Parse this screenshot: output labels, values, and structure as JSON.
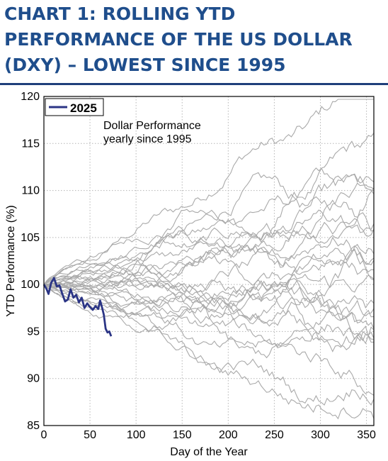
{
  "title": "CHART 1: ROLLING YTD PERFORMANCE OF THE US DOLLAR (DXY) – LOWEST SINCE 1995",
  "colors": {
    "title": "#1f4e8c",
    "current": "#2b3585",
    "history": "#a9a9a9",
    "grid": "#b5b5b5"
  },
  "chart_data": {
    "type": "line",
    "xlabel": "Day of the Year",
    "ylabel": "YTD Performance (%)",
    "xlim": [
      0,
      358
    ],
    "ylim": [
      85,
      120
    ],
    "xticks": [
      0,
      50,
      100,
      150,
      200,
      250,
      300,
      350
    ],
    "yticks": [
      85,
      90,
      95,
      100,
      105,
      110,
      115,
      120
    ],
    "grid": true,
    "legend": {
      "position": "top-left",
      "entries": [
        "2025"
      ]
    },
    "annotation": [
      "Dollar Performance",
      "yearly since 1995"
    ],
    "series": [
      {
        "name": "2025",
        "x": [
          0,
          3,
          5,
          8,
          11,
          14,
          17,
          20,
          23,
          26,
          29,
          32,
          35,
          38,
          41,
          44,
          47,
          50,
          53,
          56,
          59,
          61,
          63,
          65,
          67,
          69,
          71,
          73
        ],
        "values": [
          100.0,
          99.5,
          99.0,
          100.2,
          100.7,
          99.8,
          99.9,
          99.0,
          98.2,
          98.4,
          99.5,
          98.6,
          98.9,
          98.1,
          98.6,
          97.5,
          98.0,
          97.6,
          97.3,
          97.7,
          97.4,
          98.3,
          97.6,
          96.8,
          95.3,
          94.9,
          95.0,
          94.5
        ]
      }
    ],
    "history_note": "Dollar Performance yearly since 1995",
    "history_end_values": [
      118.5,
      112.5,
      112.0,
      111.0,
      109.5,
      108.0,
      107.0,
      106.0,
      105.5,
      104.0,
      103.0,
      102.0,
      101.5,
      100.0,
      99.0,
      98.0,
      97.5,
      96.5,
      95.5,
      95.0,
      94.0,
      93.0,
      92.0,
      90.0,
      88.0,
      85.5
    ],
    "history_amplitudes": [
      2.2,
      1.4,
      1.8,
      2.5,
      1.6,
      2.0,
      1.2,
      2.4,
      1.5,
      1.9,
      2.1,
      1.3,
      1.7,
      2.6,
      1.1,
      2.3,
      1.6,
      1.8,
      2.0,
      1.4,
      2.2,
      1.5,
      2.5,
      1.7,
      1.9,
      1.2
    ]
  }
}
